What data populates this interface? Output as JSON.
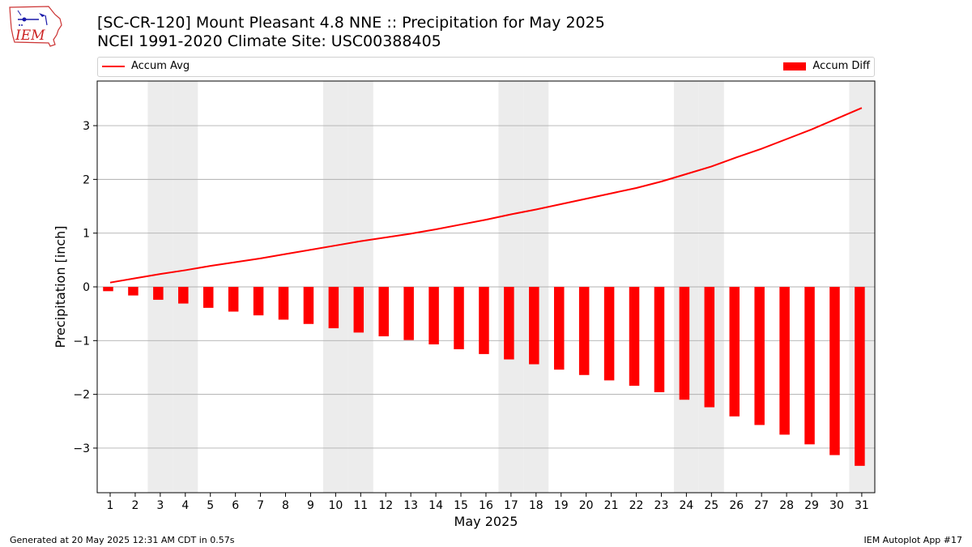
{
  "logo": {
    "text": "IEM"
  },
  "title": {
    "line1": "[SC-CR-120] Mount Pleasant 4.8 NNE :: Precipitation for May 2025",
    "line2": "NCEI 1991-2020 Climate Site: USC00388405"
  },
  "legend": {
    "line_label": "Accum Avg",
    "bar_label": "Accum Diff"
  },
  "footer": {
    "left": "Generated at 20 May 2025 12:31 AM CDT in 0.57s",
    "right": "IEM Autoplot App #17"
  },
  "colors": {
    "series": "#ff0000",
    "weekend_shade": "#ececec",
    "grid": "#b0b0b0"
  },
  "chart_data": {
    "type": "bar",
    "xlabel": "May 2025",
    "ylabel": "Precipitation [inch]",
    "categories": [
      "1",
      "2",
      "3",
      "4",
      "5",
      "6",
      "7",
      "8",
      "9",
      "10",
      "11",
      "12",
      "13",
      "14",
      "15",
      "16",
      "17",
      "18",
      "19",
      "20",
      "21",
      "22",
      "23",
      "24",
      "25",
      "26",
      "27",
      "28",
      "29",
      "30",
      "31"
    ],
    "yticks": [
      -3,
      -2,
      -1,
      0,
      1,
      2,
      3
    ],
    "ylim": [
      -3.83,
      3.83
    ],
    "grid": true,
    "legend_position": "top",
    "shaded_days": [
      3,
      4,
      10,
      11,
      17,
      18,
      24,
      25,
      31
    ],
    "series": [
      {
        "name": "Accum Avg",
        "type": "line",
        "values": [
          0.08,
          0.16,
          0.24,
          0.31,
          0.39,
          0.46,
          0.53,
          0.61,
          0.69,
          0.77,
          0.85,
          0.92,
          0.99,
          1.07,
          1.16,
          1.25,
          1.35,
          1.44,
          1.54,
          1.64,
          1.74,
          1.84,
          1.96,
          2.1,
          2.24,
          2.41,
          2.57,
          2.75,
          2.93,
          3.13,
          3.33
        ]
      },
      {
        "name": "Accum Diff",
        "type": "bar",
        "values": [
          -0.08,
          -0.16,
          -0.24,
          -0.31,
          -0.39,
          -0.46,
          -0.53,
          -0.61,
          -0.69,
          -0.77,
          -0.85,
          -0.92,
          -0.99,
          -1.07,
          -1.16,
          -1.25,
          -1.35,
          -1.44,
          -1.54,
          -1.64,
          -1.74,
          -1.84,
          -1.96,
          -2.1,
          -2.24,
          -2.41,
          -2.57,
          -2.75,
          -2.93,
          -3.13,
          -3.33
        ]
      }
    ]
  }
}
